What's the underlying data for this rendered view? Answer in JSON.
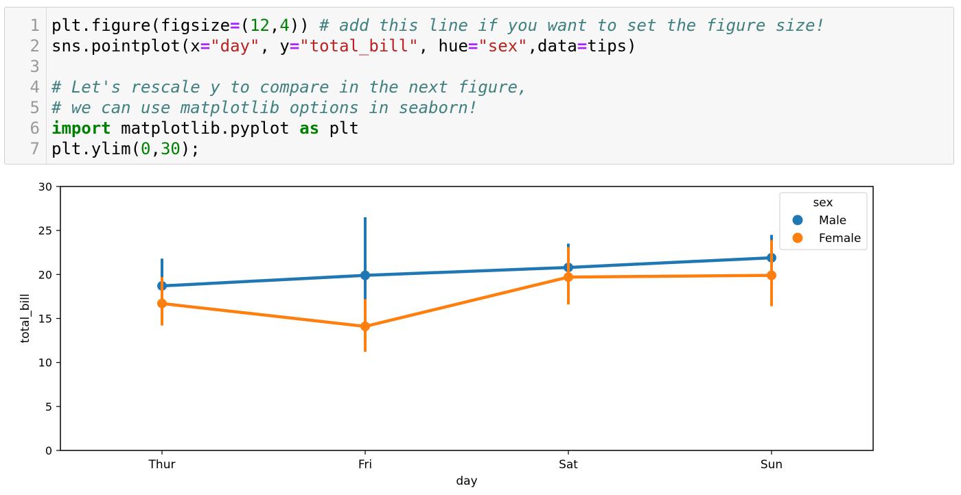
{
  "code_cell": {
    "line_numbers": [
      "1",
      "2",
      "3",
      "4",
      "5",
      "6",
      "7"
    ],
    "lines": [
      [
        {
          "t": "plt.figure(figsize",
          "c": "txt"
        },
        {
          "t": "=",
          "c": "op"
        },
        {
          "t": "(",
          "c": "txt"
        },
        {
          "t": "12",
          "c": "num"
        },
        {
          "t": ",",
          "c": "txt"
        },
        {
          "t": "4",
          "c": "num"
        },
        {
          "t": ")) ",
          "c": "txt"
        },
        {
          "t": "# add this line if you want to set the figure size!",
          "c": "com"
        }
      ],
      [
        {
          "t": "sns.pointplot(x",
          "c": "txt"
        },
        {
          "t": "=",
          "c": "op"
        },
        {
          "t": "\"day\"",
          "c": "str"
        },
        {
          "t": ", y",
          "c": "txt"
        },
        {
          "t": "=",
          "c": "op"
        },
        {
          "t": "\"total_bill\"",
          "c": "str"
        },
        {
          "t": ", hue",
          "c": "txt"
        },
        {
          "t": "=",
          "c": "op"
        },
        {
          "t": "\"sex\"",
          "c": "str"
        },
        {
          "t": ",data",
          "c": "txt"
        },
        {
          "t": "=",
          "c": "op"
        },
        {
          "t": "tips)",
          "c": "txt"
        }
      ],
      [],
      [
        {
          "t": "# Let's rescale y to compare in the next figure,",
          "c": "com"
        }
      ],
      [
        {
          "t": "# we can use matplotlib options in seaborn!",
          "c": "com"
        }
      ],
      [
        {
          "t": "import",
          "c": "kw"
        },
        {
          "t": " matplotlib.pyplot ",
          "c": "txt"
        },
        {
          "t": "as",
          "c": "kw"
        },
        {
          "t": " plt",
          "c": "txt"
        }
      ],
      [
        {
          "t": "plt.ylim(",
          "c": "txt"
        },
        {
          "t": "0",
          "c": "num"
        },
        {
          "t": ",",
          "c": "txt"
        },
        {
          "t": "30",
          "c": "num"
        },
        {
          "t": ");",
          "c": "txt"
        }
      ]
    ]
  },
  "chart_data": {
    "type": "line",
    "categories": [
      "Thur",
      "Fri",
      "Sat",
      "Sun"
    ],
    "xlabel": "day",
    "ylabel": "total_bill",
    "ylim": [
      0,
      30
    ],
    "yticks": [
      0,
      5,
      10,
      15,
      20,
      25,
      30
    ],
    "grid": false,
    "legend": {
      "title": "sex",
      "placement": "top-right"
    },
    "series": [
      {
        "name": "Male",
        "color": "#1f77b4",
        "values": [
          18.7,
          19.9,
          20.8,
          21.9
        ],
        "ci_low": [
          16.1,
          16.7,
          18.4,
          19.7
        ],
        "ci_high": [
          21.8,
          26.5,
          23.5,
          24.5
        ]
      },
      {
        "name": "Female",
        "color": "#ff7f0e",
        "values": [
          16.7,
          14.1,
          19.7,
          19.9
        ],
        "ci_low": [
          14.2,
          11.2,
          16.6,
          16.4
        ],
        "ci_high": [
          19.7,
          17.2,
          23.1,
          23.9
        ]
      }
    ]
  }
}
